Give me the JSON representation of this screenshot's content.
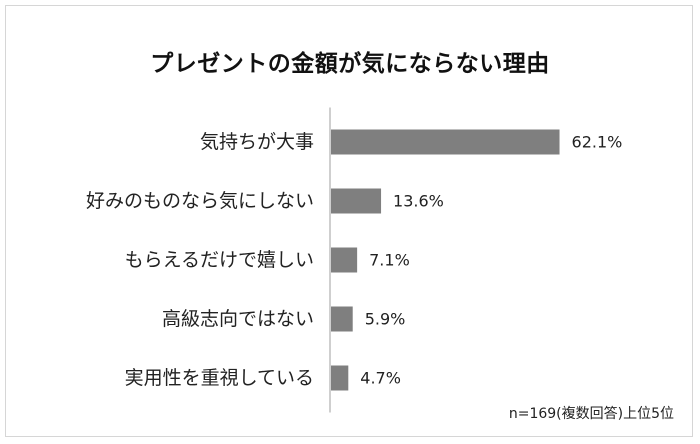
{
  "chart_data": {
    "type": "bar",
    "orientation": "horizontal",
    "title": "プレゼントの金額が気にならない理由",
    "categories": [
      "気持ちが大事",
      "好みのものなら気にしない",
      "もらえるだけで嬉しい",
      "高級志向ではない",
      "実用性を重視している"
    ],
    "values": [
      62.1,
      13.6,
      7.1,
      5.9,
      4.7
    ],
    "value_labels": [
      "62.1%",
      "13.6%",
      "7.1%",
      "5.9%",
      "4.7%"
    ],
    "xlim": [
      0,
      100
    ],
    "grid": false,
    "legend": "none",
    "bar_color": "#7f7f7f",
    "axis_color": "#bfbfbf",
    "text_color": "#222222"
  },
  "footnote": "n=169(複数回答)上位5位"
}
